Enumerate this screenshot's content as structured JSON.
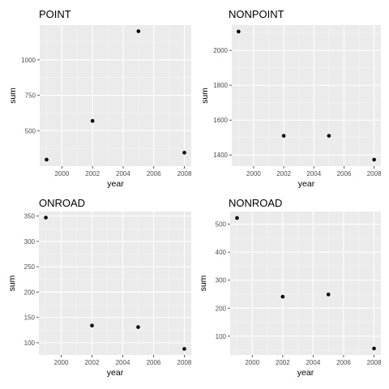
{
  "chart_data": [
    {
      "type": "scatter",
      "title": "POINT",
      "xlabel": "year",
      "ylabel": "sum",
      "x": [
        1999,
        2002,
        2005,
        2008
      ],
      "y": [
        296,
        569,
        1202,
        345
      ],
      "xlim": [
        1998.55,
        2008.45
      ],
      "ylim": [
        250,
        1245
      ],
      "xticks": [
        2000,
        2002,
        2004,
        2006,
        2008
      ],
      "yticks": [
        500,
        750,
        1000
      ],
      "xticklabels": [
        "2000",
        "2002",
        "2004",
        "2006",
        "2008"
      ],
      "yticklabels": [
        "500",
        "750",
        "1000"
      ],
      "grid": true,
      "legend": "none"
    },
    {
      "type": "scatter",
      "title": "NONPOINT",
      "xlabel": "year",
      "ylabel": "sum",
      "x": [
        1999,
        2002,
        2005,
        2008
      ],
      "y": [
        2108,
        1510,
        1510,
        1373
      ],
      "xlim": [
        1998.55,
        2008.45
      ],
      "ylim": [
        1336,
        2145
      ],
      "xticks": [
        2000,
        2002,
        2004,
        2006,
        2008
      ],
      "yticks": [
        1400,
        1600,
        1800,
        2000
      ],
      "xticklabels": [
        "2000",
        "2002",
        "2004",
        "2006",
        "2008"
      ],
      "yticklabels": [
        "1400",
        "1600",
        "1800",
        "2000"
      ],
      "grid": true,
      "legend": "none"
    },
    {
      "type": "scatter",
      "title": "ONROAD",
      "xlabel": "year",
      "ylabel": "sum",
      "x": [
        1999,
        2002,
        2005,
        2008
      ],
      "y": [
        347,
        134,
        131,
        88
      ],
      "xlim": [
        1998.55,
        2008.45
      ],
      "ylim": [
        76,
        359
      ],
      "xticks": [
        2000,
        2002,
        2004,
        2006,
        2008
      ],
      "yticks": [
        100,
        150,
        200,
        250,
        300,
        350
      ],
      "xticklabels": [
        "2000",
        "2002",
        "2004",
        "2006",
        "2008"
      ],
      "yticklabels": [
        "100",
        "150",
        "200",
        "250",
        "300",
        "350"
      ],
      "grid": true,
      "legend": "none"
    },
    {
      "type": "scatter",
      "title": "NONROAD",
      "xlabel": "year",
      "ylabel": "sum",
      "x": [
        1999,
        2002,
        2005,
        2008
      ],
      "y": [
        522,
        241,
        249,
        56
      ],
      "xlim": [
        1998.55,
        2008.45
      ],
      "ylim": [
        33,
        545
      ],
      "xticks": [
        2000,
        2002,
        2004,
        2006,
        2008
      ],
      "yticks": [
        100,
        200,
        300,
        400,
        500
      ],
      "xticklabels": [
        "2000",
        "2002",
        "2004",
        "2006",
        "2008"
      ],
      "yticklabels": [
        "100",
        "200",
        "300",
        "400",
        "500"
      ],
      "grid": true,
      "legend": "none"
    }
  ]
}
